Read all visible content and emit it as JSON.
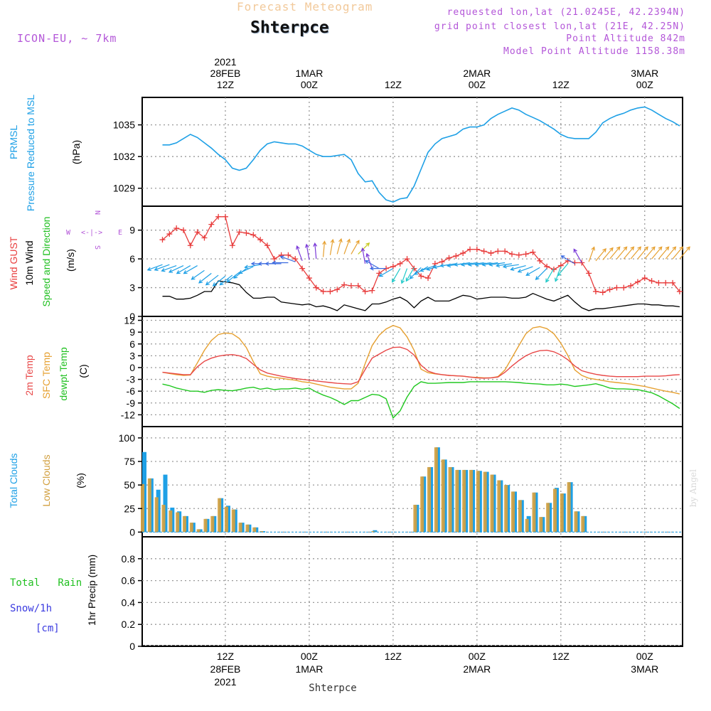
{
  "header": {
    "subtitle": "Forecast Meteogram",
    "station": "Shterpce",
    "model": "ICON-EU, ~ 7km",
    "requested": "requested lon,lat (21.0245E, 42.2394N)",
    "closest": "grid point closest lon,lat (21E, 42.25N)",
    "point_alt": "Point Altitude 842m",
    "model_alt": "Model Point Altitude 1158.38m",
    "footer_station": "Shterpce",
    "credit": "by Angel"
  },
  "time_axis": {
    "top_labels": [
      {
        "line1": "2021",
        "line2": "28FEB",
        "line3": "12Z",
        "hour": 12
      },
      {
        "line1": "",
        "line2": "1MAR",
        "line3": "00Z",
        "hour": 24
      },
      {
        "line1": "",
        "line2": "",
        "line3": "12Z",
        "hour": 36
      },
      {
        "line1": "",
        "line2": "2MAR",
        "line3": "00Z",
        "hour": 48
      },
      {
        "line1": "",
        "line2": "",
        "line3": "12Z",
        "hour": 60
      },
      {
        "line1": "",
        "line2": "3MAR",
        "line3": "00Z",
        "hour": 72
      }
    ],
    "bottom_labels": [
      {
        "line1": "12Z",
        "line2": "28FEB",
        "line3": "2021",
        "hour": 12
      },
      {
        "line1": "00Z",
        "line2": "1MAR",
        "line3": "",
        "hour": 24
      },
      {
        "line1": "12Z",
        "line2": "",
        "line3": "",
        "hour": 36
      },
      {
        "line1": "00Z",
        "line2": "2MAR",
        "line3": "",
        "hour": 48
      },
      {
        "line1": "12Z",
        "line2": "",
        "line3": "",
        "hour": 60
      },
      {
        "line1": "00Z",
        "line2": "3MAR",
        "line3": "",
        "hour": 72
      }
    ]
  },
  "panel_labels": {
    "prmsl": [
      "PRMSL",
      "Pressure Reduced to MSL"
    ],
    "prmsl_unit": "(hPa)",
    "wind_gust": "Wind GUST",
    "wind_10m": "10m Wind",
    "wind_speed_dir": "Speed and Direction",
    "wind_unit": "(m/s)",
    "compass": {
      "n": "N",
      "s": "S",
      "w": "W",
      "e": "E",
      "arrows": "<-|->"
    },
    "temp_2m": "2m Temp",
    "temp_sfc": "SFC Temp",
    "temp_dew": "dewpt Temp",
    "temp_unit": "(C)",
    "clouds_total": "Total Clouds",
    "clouds_low": "Low Clouds",
    "clouds_unit": "(%)",
    "precip_total_rain": "Total   Rain",
    "precip_snow": "Snow/1h",
    "precip_snow_unit": "[cm]",
    "precip_axis": "1hr Precip (mm)"
  },
  "colors": {
    "pressure": "#1ea0e6",
    "gust": "#e83c3c",
    "wind10": "#000000",
    "temp2m": "#e84848",
    "sfc": "#e6a030",
    "dew": "#20c820",
    "total_clouds": "#1ea0e6",
    "low_clouds": "#d2a040",
    "label_green": "#20c020",
    "label_blue": "#3a3ae0",
    "label_purple": "#b356d8"
  },
  "chart_data": [
    {
      "type": "line",
      "name": "pressure",
      "x_unit": "forecast hour from 28FEB 00Z",
      "ylim": [
        1027.3,
        1037.6
      ],
      "yticks": [
        1029,
        1032,
        1035
      ],
      "x": [
        3,
        4,
        5,
        6,
        7,
        8,
        9,
        10,
        11,
        12,
        13,
        14,
        15,
        16,
        17,
        18,
        19,
        20,
        21,
        22,
        23,
        24,
        25,
        26,
        27,
        28,
        29,
        30,
        31,
        32,
        33,
        34,
        35,
        36,
        37,
        38,
        39,
        40,
        41,
        42,
        43,
        44,
        45,
        46,
        47,
        48,
        49,
        50,
        51,
        52,
        53,
        54,
        55,
        56,
        57,
        58,
        59,
        60,
        61,
        62,
        63,
        64,
        65,
        66,
        67,
        68,
        69,
        70,
        71,
        72,
        73,
        74,
        75,
        76,
        77
      ],
      "values": [
        1033.1,
        1033.1,
        1033.3,
        1033.7,
        1034.1,
        1033.8,
        1033.3,
        1032.8,
        1032.2,
        1031.7,
        1030.9,
        1030.7,
        1030.9,
        1031.7,
        1032.6,
        1033.2,
        1033.4,
        1033.3,
        1033.2,
        1033.2,
        1033.0,
        1032.6,
        1032.2,
        1032.0,
        1032.0,
        1032.1,
        1032.2,
        1031.7,
        1030.4,
        1029.6,
        1029.7,
        1028.6,
        1027.9,
        1027.7,
        1028.0,
        1028.1,
        1029.2,
        1030.8,
        1032.4,
        1033.2,
        1033.7,
        1033.9,
        1034.1,
        1034.6,
        1034.8,
        1034.8,
        1035.0,
        1035.6,
        1036.0,
        1036.3,
        1036.6,
        1036.4,
        1036.0,
        1035.7,
        1035.4,
        1035.0,
        1034.6,
        1034.1,
        1033.8,
        1033.7,
        1033.7,
        1033.7,
        1034.3,
        1035.2,
        1035.6,
        1035.9,
        1036.1,
        1036.4,
        1036.6,
        1036.7,
        1036.4,
        1036.0,
        1035.6,
        1035.3,
        1034.9
      ]
    },
    {
      "type": "line",
      "name": "wind",
      "ylim": [
        0,
        11.5
      ],
      "yticks": [
        0,
        3,
        6,
        9
      ],
      "x": [
        3,
        4,
        5,
        6,
        7,
        8,
        9,
        10,
        11,
        12,
        13,
        14,
        15,
        16,
        17,
        18,
        19,
        20,
        21,
        22,
        23,
        24,
        25,
        26,
        27,
        28,
        29,
        30,
        31,
        32,
        33,
        34,
        35,
        36,
        37,
        38,
        39,
        40,
        41,
        42,
        43,
        44,
        45,
        46,
        47,
        48,
        49,
        50,
        51,
        52,
        53,
        54,
        55,
        56,
        57,
        58,
        59,
        60,
        61,
        62,
        63,
        64,
        65,
        66,
        67,
        68,
        69,
        70,
        71,
        72,
        73,
        74,
        75,
        76,
        77
      ],
      "gust": [
        8.0,
        8.6,
        9.2,
        9.0,
        7.4,
        8.8,
        8.2,
        9.6,
        10.4,
        10.4,
        7.4,
        8.8,
        8.7,
        8.5,
        8.0,
        7.4,
        6.0,
        6.4,
        6.4,
        6.0,
        5.0,
        4.0,
        3.0,
        2.6,
        2.6,
        2.8,
        3.3,
        3.2,
        3.2,
        2.6,
        2.7,
        4.5,
        5.0,
        5.2,
        5.5,
        6.0,
        5.0,
        4.2,
        4.0,
        5.5,
        5.7,
        6.1,
        6.3,
        6.6,
        7.0,
        7.0,
        6.8,
        6.6,
        6.8,
        6.8,
        6.5,
        6.4,
        6.5,
        6.7,
        5.8,
        5.2,
        4.9,
        5.3,
        5.8,
        5.6,
        5.6,
        4.5,
        2.6,
        2.5,
        2.8,
        3.0,
        3.0,
        3.2,
        3.6,
        4.0,
        3.7,
        3.5,
        3.5,
        3.5,
        2.6
      ],
      "wind10": [
        2.1,
        2.1,
        1.8,
        1.8,
        1.9,
        2.2,
        2.6,
        2.6,
        3.7,
        3.6,
        3.5,
        3.3,
        2.5,
        1.9,
        1.9,
        2.0,
        2.0,
        1.5,
        1.4,
        1.3,
        1.2,
        1.3,
        1.0,
        1.1,
        0.9,
        0.6,
        1.2,
        1.0,
        0.8,
        0.6,
        1.3,
        1.3,
        1.5,
        1.8,
        2.0,
        1.6,
        0.9,
        1.6,
        2.0,
        1.6,
        1.6,
        1.6,
        1.9,
        2.2,
        2.1,
        1.8,
        1.9,
        2.0,
        2.0,
        2.0,
        1.9,
        1.9,
        2.0,
        2.4,
        2.1,
        1.8,
        1.6,
        1.9,
        2.2,
        1.5,
        0.9,
        0.6,
        0.8,
        0.8,
        0.9,
        1.0,
        1.1,
        1.2,
        1.3,
        1.3,
        1.2,
        1.2,
        1.1,
        1.1,
        1.0
      ],
      "arrow_dir_deg": [
        250,
        250,
        250,
        245,
        240,
        240,
        235,
        232,
        232,
        232,
        232,
        232,
        232,
        245,
        260,
        270,
        270,
        270,
        270,
        290,
        340,
        350,
        355,
        5,
        10,
        15,
        20,
        30,
        45,
        350,
        340,
        300,
        270,
        240,
        210,
        200,
        210,
        225,
        240,
        250,
        255,
        260,
        262,
        262,
        262,
        262,
        262,
        262,
        262,
        262,
        262,
        262,
        255,
        250,
        240,
        225,
        210,
        200,
        220,
        300,
        330,
        20,
        40,
        40,
        40,
        40,
        40,
        40,
        40,
        40,
        40,
        40,
        40,
        40,
        40
      ],
      "arrow_spd": [
        5.4,
        5.4,
        5.3,
        5.3,
        5.3,
        5.3,
        4.8,
        4.5,
        4.3,
        4.2,
        4.3,
        4.6,
        5.0,
        5.2,
        5.4,
        5.5,
        5.5,
        5.5,
        5.6,
        5.7,
        5.8,
        5.9,
        6.0,
        6.2,
        6.4,
        6.5,
        6.5,
        6.5,
        6.5,
        5.5,
        5.0,
        5.0,
        5.0,
        5.0,
        5.0,
        5.0,
        5.1,
        5.1,
        5.2,
        5.3,
        5.3,
        5.4,
        5.5,
        5.5,
        5.6,
        5.6,
        5.6,
        5.6,
        5.6,
        5.6,
        5.5,
        5.4,
        5.3,
        5.2,
        5.1,
        5.0,
        5.0,
        5.2,
        5.5,
        5.5,
        5.6,
        5.7,
        5.8,
        5.9,
        6.0,
        6.0,
        6.0,
        6.0,
        6.0,
        6.0,
        6.0,
        6.0,
        6.0,
        6.0,
        6.0
      ]
    },
    {
      "type": "line",
      "name": "temperature",
      "ylim": [
        -15,
        13
      ],
      "yticks": [
        -12,
        -9,
        -6,
        -3,
        0,
        3,
        6,
        9,
        12
      ],
      "x": [
        3,
        4,
        5,
        6,
        7,
        8,
        9,
        10,
        11,
        12,
        13,
        14,
        15,
        16,
        17,
        18,
        19,
        20,
        21,
        22,
        23,
        24,
        25,
        26,
        27,
        28,
        29,
        30,
        31,
        32,
        33,
        34,
        35,
        36,
        37,
        38,
        39,
        40,
        41,
        42,
        43,
        44,
        45,
        46,
        47,
        48,
        49,
        50,
        51,
        52,
        53,
        54,
        55,
        56,
        57,
        58,
        59,
        60,
        61,
        62,
        63,
        64,
        65,
        66,
        67,
        68,
        69,
        70,
        71,
        72,
        73,
        74,
        75,
        76,
        77
      ],
      "temp2m": [
        -1.2,
        -1.4,
        -1.6,
        -1.8,
        -1.8,
        0.2,
        1.6,
        2.4,
        2.9,
        3.2,
        3.3,
        3.0,
        2.3,
        0.8,
        -0.6,
        -1.4,
        -1.8,
        -2.2,
        -2.5,
        -2.8,
        -3.0,
        -3.2,
        -3.4,
        -3.6,
        -3.8,
        -4.0,
        -4.1,
        -4.2,
        -3.6,
        -0.5,
        2.4,
        3.4,
        4.4,
        5.1,
        5.2,
        4.6,
        3.2,
        0.6,
        -0.9,
        -1.5,
        -1.8,
        -2.0,
        -2.1,
        -2.2,
        -2.4,
        -2.6,
        -2.7,
        -2.6,
        -2.4,
        -1.2,
        0.4,
        1.8,
        3.0,
        3.8,
        4.3,
        4.4,
        4.0,
        3.2,
        2.0,
        0.4,
        -0.8,
        -1.3,
        -1.7,
        -2.0,
        -2.2,
        -2.3,
        -2.3,
        -2.3,
        -2.3,
        -2.2,
        -2.2,
        -2.2,
        -2.1,
        -1.9,
        -1.8
      ],
      "sfc": [
        -1.2,
        -1.5,
        -1.8,
        -2.0,
        -1.9,
        1.2,
        4.4,
        6.9,
        8.4,
        8.8,
        8.6,
        7.4,
        5.1,
        1.5,
        -1.6,
        -2.2,
        -2.5,
        -2.7,
        -3.0,
        -3.2,
        -3.6,
        -3.8,
        -4.2,
        -4.6,
        -5.0,
        -5.2,
        -5.4,
        -5.4,
        -4.0,
        1.0,
        5.6,
        8.2,
        9.8,
        10.7,
        10.1,
        7.8,
        4.4,
        -0.4,
        -1.3,
        -1.6,
        -1.8,
        -2.0,
        -2.1,
        -2.2,
        -2.4,
        -2.5,
        -2.6,
        -2.6,
        -2.3,
        -0.6,
        2.5,
        5.6,
        8.6,
        10.1,
        10.4,
        9.9,
        8.6,
        6.2,
        3.1,
        -0.6,
        -2.0,
        -2.7,
        -3.0,
        -3.3,
        -3.6,
        -3.8,
        -4.0,
        -4.2,
        -4.5,
        -4.8,
        -5.2,
        -5.6,
        -6.0,
        -6.3,
        -6.7
      ],
      "dew": [
        -4.2,
        -4.6,
        -5.2,
        -5.6,
        -6.0,
        -6.0,
        -6.3,
        -5.8,
        -5.6,
        -5.8,
        -5.9,
        -5.6,
        -5.2,
        -5.0,
        -5.5,
        -5.2,
        -5.6,
        -5.4,
        -5.4,
        -5.2,
        -5.5,
        -5.2,
        -6.2,
        -7.0,
        -7.6,
        -8.4,
        -9.4,
        -8.4,
        -8.4,
        -7.6,
        -6.8,
        -7.0,
        -7.9,
        -12.8,
        -11.0,
        -7.5,
        -4.8,
        -3.6,
        -4.0,
        -4.0,
        -3.9,
        -3.8,
        -3.8,
        -3.8,
        -3.6,
        -3.6,
        -3.6,
        -3.6,
        -3.6,
        -3.6,
        -3.7,
        -3.8,
        -4.0,
        -4.1,
        -4.2,
        -4.4,
        -4.4,
        -4.2,
        -4.4,
        -4.8,
        -4.6,
        -4.4,
        -4.1,
        -4.6,
        -5.2,
        -5.4,
        -5.4,
        -5.5,
        -5.6,
        -6.0,
        -6.4,
        -7.2,
        -8.2,
        -9.2,
        -10.4
      ]
    },
    {
      "type": "bar",
      "name": "clouds",
      "ylim": [
        -5,
        112
      ],
      "yticks": [
        0,
        25,
        50,
        75,
        100
      ],
      "x": [
        0,
        1,
        2,
        3,
        4,
        5,
        6,
        7,
        8,
        9,
        10,
        11,
        12,
        13,
        14,
        15,
        16,
        17,
        18,
        19,
        20,
        21,
        22,
        23,
        24,
        25,
        26,
        27,
        28,
        29,
        30,
        31,
        32,
        33,
        34,
        35,
        36,
        37,
        38,
        39,
        40,
        41,
        42,
        43,
        44,
        45,
        46,
        47,
        48,
        49,
        50,
        51,
        52,
        53,
        54,
        55,
        56,
        57,
        58,
        59,
        60,
        61,
        62,
        63,
        64,
        65,
        66,
        67,
        68,
        69,
        70,
        71,
        72,
        73,
        74,
        75,
        76,
        77
      ],
      "total": [
        85,
        57,
        45,
        61,
        26,
        22,
        17,
        10,
        3,
        14,
        17,
        36,
        28,
        24,
        10,
        8,
        5,
        1,
        0,
        0,
        0,
        0,
        0,
        0,
        0,
        0,
        0,
        0,
        0,
        0,
        0,
        0,
        0,
        2,
        0,
        0,
        0,
        0,
        0,
        29,
        59,
        69,
        90,
        77,
        69,
        66,
        66,
        66,
        65,
        64,
        61,
        55,
        50,
        43,
        34,
        17,
        42,
        16,
        31,
        47,
        41,
        53,
        22,
        17,
        0,
        0,
        0,
        0,
        0,
        0,
        0,
        0,
        0,
        0,
        0,
        0,
        0,
        0
      ],
      "low": [
        51,
        57,
        37,
        29,
        23,
        21,
        17,
        10,
        3,
        14,
        17,
        36,
        27,
        24,
        10,
        8,
        5,
        1,
        0,
        0,
        0,
        0,
        0,
        0,
        0,
        0,
        0,
        0,
        0,
        0,
        0,
        0,
        0,
        1,
        0,
        0,
        0,
        0,
        0,
        29,
        59,
        69,
        90,
        77,
        69,
        66,
        66,
        66,
        65,
        64,
        61,
        55,
        50,
        43,
        34,
        14,
        42,
        16,
        31,
        46,
        41,
        53,
        22,
        17,
        0,
        0,
        0,
        0,
        0,
        0,
        0,
        0,
        0,
        0,
        0,
        0,
        0,
        0
      ]
    },
    {
      "type": "bar",
      "name": "precipitation",
      "ylim": [
        0,
        1.0
      ],
      "yticks": [
        0,
        0.2,
        0.4,
        0.6,
        0.8
      ],
      "total_rain": [],
      "snow": []
    }
  ]
}
